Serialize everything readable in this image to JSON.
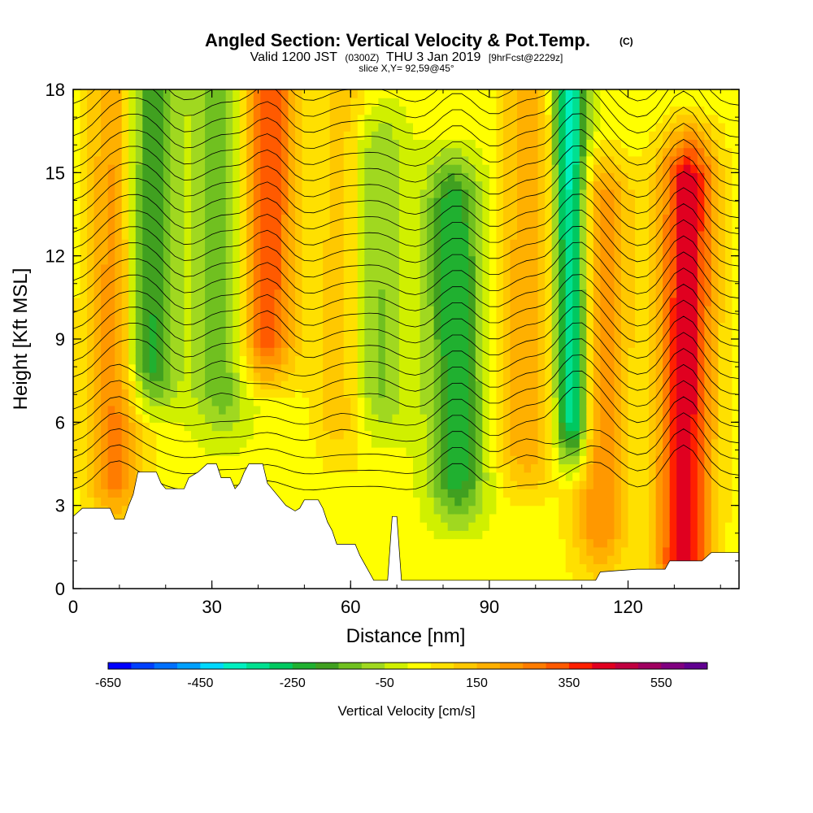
{
  "header": {
    "title_main": "Angled Section: Vertical Velocity & Pot.Temp.",
    "title_tag": "(C)",
    "valid_prefix": "Valid 1200 JST",
    "valid_zulu": "(0300Z)",
    "valid_date": "THU 3 Jan 2019",
    "forecast_tag": "[9hrFcst@2229z]",
    "slice_info": "slice X,Y= 92,59@45°"
  },
  "chart_data": {
    "type": "heatmap",
    "title": "Angled Section: Vertical Velocity & Pot.Temp.",
    "xlabel": "Distance [nm]",
    "ylabel": "Height [Kft MSL]",
    "xlim": [
      0,
      144
    ],
    "ylim": [
      0,
      18
    ],
    "x_ticks": [
      "0",
      "30",
      "60",
      "90",
      "120"
    ],
    "x_tick_values": [
      0,
      30,
      60,
      90,
      120
    ],
    "y_ticks": [
      "0",
      "3",
      "6",
      "9",
      "12",
      "15",
      "18"
    ],
    "y_tick_values": [
      0,
      3,
      6,
      9,
      12,
      15,
      18
    ],
    "colorbar": {
      "label": "Vertical Velocity [cm/s]",
      "min": -650,
      "max": 650,
      "step": 50,
      "tick_labels": [
        "-650",
        "-450",
        "-250",
        "-50",
        "150",
        "350",
        "550"
      ],
      "colors": [
        "#0000ff",
        "#0040ff",
        "#0070ff",
        "#00a0ff",
        "#00d8ff",
        "#00f0c0",
        "#00e090",
        "#00c860",
        "#20b030",
        "#40a020",
        "#70c020",
        "#a0d820",
        "#d0f000",
        "#ffff00",
        "#ffe000",
        "#ffc800",
        "#ffb000",
        "#ff9800",
        "#ff7c00",
        "#ff5a00",
        "#ff2000",
        "#e00020",
        "#c00040",
        "#a00060",
        "#800080",
        "#600090"
      ]
    },
    "updraft_zones": [
      {
        "x_center": 9,
        "top": 18,
        "bottom": 4,
        "strength": 260
      },
      {
        "x_center": 42,
        "top": 18,
        "bottom": 9,
        "strength": 320
      },
      {
        "x_center": 58,
        "top": 18,
        "bottom": 6,
        "strength": 120
      },
      {
        "x_center": 98,
        "top": 18,
        "bottom": 5,
        "strength": 180
      },
      {
        "x_center": 114,
        "top": 14,
        "bottom": 2,
        "strength": 220
      },
      {
        "x_center": 132,
        "top": 15,
        "bottom": 1,
        "strength": 420
      }
    ],
    "downdraft_zones": [
      {
        "x_center": 16,
        "top": 18,
        "bottom": 8,
        "strength": -280
      },
      {
        "x_center": 32,
        "top": 18,
        "bottom": 7,
        "strength": -160
      },
      {
        "x_center": 66,
        "top": 16,
        "bottom": 7,
        "strength": -140
      },
      {
        "x_center": 83,
        "top": 14,
        "bottom": 4,
        "strength": -260
      },
      {
        "x_center": 108,
        "top": 18,
        "bottom": 6,
        "strength": -430
      }
    ],
    "terrain": [
      [
        0,
        2.6
      ],
      [
        2,
        2.9
      ],
      [
        8,
        2.9
      ],
      [
        9,
        2.5
      ],
      [
        11,
        2.5
      ],
      [
        12,
        3.0
      ],
      [
        13,
        3.4
      ],
      [
        14,
        4.2
      ],
      [
        18,
        4.2
      ],
      [
        19,
        3.8
      ],
      [
        20,
        3.6
      ],
      [
        24,
        3.6
      ],
      [
        25,
        4.0
      ],
      [
        27,
        4.2
      ],
      [
        29,
        4.5
      ],
      [
        31,
        4.5
      ],
      [
        32,
        4.0
      ],
      [
        34,
        4.0
      ],
      [
        35,
        3.6
      ],
      [
        36,
        3.8
      ],
      [
        37,
        4.2
      ],
      [
        38,
        4.5
      ],
      [
        41,
        4.5
      ],
      [
        42,
        3.8
      ],
      [
        43,
        3.6
      ],
      [
        45,
        3.2
      ],
      [
        46,
        3.0
      ],
      [
        48,
        2.8
      ],
      [
        49,
        2.9
      ],
      [
        50,
        3.2
      ],
      [
        53,
        3.2
      ],
      [
        54,
        2.9
      ],
      [
        55,
        2.4
      ],
      [
        56,
        2.1
      ],
      [
        57,
        1.6
      ],
      [
        61,
        1.6
      ],
      [
        62,
        1.2
      ],
      [
        63,
        0.9
      ],
      [
        64,
        0.6
      ],
      [
        65,
        0.3
      ],
      [
        68,
        0.3
      ],
      [
        69,
        2.6
      ],
      [
        70,
        2.6
      ],
      [
        71,
        0.3
      ],
      [
        113,
        0.3
      ],
      [
        114,
        0.6
      ],
      [
        122,
        0.7
      ],
      [
        128,
        0.7
      ],
      [
        129,
        1.0
      ],
      [
        136,
        1.0
      ],
      [
        138,
        1.3
      ],
      [
        144,
        1.3
      ]
    ]
  }
}
